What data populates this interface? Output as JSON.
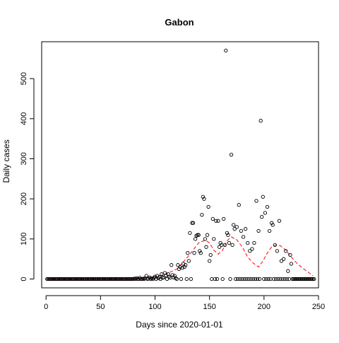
{
  "chart_data": {
    "type": "scatter",
    "title": "Gabon",
    "xlabel": "Days since 2020-01-01",
    "ylabel": "Daily cases",
    "xlim": [
      -4,
      250
    ],
    "ylim": [
      -22,
      592
    ],
    "xticks": [
      0,
      50,
      100,
      150,
      200,
      250
    ],
    "yticks": [
      0,
      100,
      200,
      300,
      400,
      500
    ],
    "grid": false,
    "point_color": "#000000",
    "trend_color": "#ff0000",
    "series": [
      {
        "values": [
          [
            1,
            0
          ],
          [
            2,
            0
          ],
          [
            3,
            0
          ],
          [
            4,
            0
          ],
          [
            5,
            0
          ],
          [
            6,
            0
          ],
          [
            7,
            0
          ],
          [
            8,
            0
          ],
          [
            9,
            0
          ],
          [
            10,
            0
          ],
          [
            11,
            0
          ],
          [
            12,
            0
          ],
          [
            13,
            0
          ],
          [
            14,
            0
          ],
          [
            15,
            0
          ],
          [
            16,
            0
          ],
          [
            17,
            0
          ],
          [
            18,
            0
          ],
          [
            19,
            0
          ],
          [
            20,
            0
          ],
          [
            21,
            0
          ],
          [
            22,
            0
          ],
          [
            23,
            0
          ],
          [
            24,
            0
          ],
          [
            25,
            0
          ],
          [
            26,
            0
          ],
          [
            27,
            0
          ],
          [
            28,
            0
          ],
          [
            29,
            0
          ],
          [
            30,
            0
          ],
          [
            31,
            0
          ],
          [
            32,
            0
          ],
          [
            33,
            0
          ],
          [
            34,
            0
          ],
          [
            35,
            0
          ],
          [
            36,
            0
          ],
          [
            37,
            0
          ],
          [
            38,
            0
          ],
          [
            39,
            0
          ],
          [
            40,
            0
          ],
          [
            41,
            0
          ],
          [
            42,
            0
          ],
          [
            43,
            0
          ],
          [
            44,
            0
          ],
          [
            45,
            0
          ],
          [
            46,
            0
          ],
          [
            47,
            0
          ],
          [
            48,
            0
          ],
          [
            49,
            0
          ],
          [
            50,
            0
          ],
          [
            51,
            0
          ],
          [
            52,
            0
          ],
          [
            53,
            0
          ],
          [
            54,
            0
          ],
          [
            55,
            0
          ],
          [
            56,
            0
          ],
          [
            57,
            0
          ],
          [
            58,
            0
          ],
          [
            59,
            0
          ],
          [
            60,
            0
          ],
          [
            61,
            0
          ],
          [
            62,
            0
          ],
          [
            63,
            0
          ],
          [
            64,
            0
          ],
          [
            65,
            0
          ],
          [
            66,
            0
          ],
          [
            67,
            0
          ],
          [
            68,
            0
          ],
          [
            69,
            0
          ],
          [
            70,
            0
          ],
          [
            71,
            0
          ],
          [
            72,
            0
          ],
          [
            73,
            0
          ],
          [
            74,
            0
          ],
          [
            75,
            0
          ],
          [
            76,
            0
          ],
          [
            77,
            0
          ],
          [
            78,
            0
          ],
          [
            79,
            0
          ],
          [
            80,
            0
          ],
          [
            81,
            1
          ],
          [
            82,
            0
          ],
          [
            83,
            2
          ],
          [
            84,
            0
          ],
          [
            85,
            0
          ],
          [
            86,
            3
          ],
          [
            87,
            0
          ],
          [
            88,
            0
          ],
          [
            89,
            1
          ],
          [
            90,
            0
          ],
          [
            91,
            2
          ],
          [
            92,
            8
          ],
          [
            93,
            0
          ],
          [
            94,
            1
          ],
          [
            95,
            4
          ],
          [
            96,
            0
          ],
          [
            97,
            2
          ],
          [
            98,
            0
          ],
          [
            99,
            3
          ],
          [
            100,
            6
          ],
          [
            101,
            0
          ],
          [
            102,
            8
          ],
          [
            103,
            2
          ],
          [
            104,
            5
          ],
          [
            105,
            0
          ],
          [
            106,
            12
          ],
          [
            107,
            3
          ],
          [
            108,
            4
          ],
          [
            109,
            15
          ],
          [
            110,
            9
          ],
          [
            111,
            0
          ],
          [
            112,
            12
          ],
          [
            113,
            6
          ],
          [
            114,
            3
          ],
          [
            115,
            35
          ],
          [
            116,
            10
          ],
          [
            117,
            4
          ],
          [
            118,
            8
          ],
          [
            119,
            2
          ],
          [
            120,
            0
          ],
          [
            121,
            35
          ],
          [
            122,
            25
          ],
          [
            123,
            30
          ],
          [
            124,
            0
          ],
          [
            125,
            28
          ],
          [
            126,
            38
          ],
          [
            127,
            30
          ],
          [
            128,
            35
          ],
          [
            129,
            0
          ],
          [
            130,
            65
          ],
          [
            131,
            45
          ],
          [
            132,
            115
          ],
          [
            133,
            0
          ],
          [
            134,
            140
          ],
          [
            135,
            140
          ],
          [
            136,
            65
          ],
          [
            137,
            100
          ],
          [
            138,
            108
          ],
          [
            139,
            110
          ],
          [
            140,
            110
          ],
          [
            141,
            70
          ],
          [
            142,
            65
          ],
          [
            143,
            160
          ],
          [
            144,
            205
          ],
          [
            145,
            200
          ],
          [
            146,
            100
          ],
          [
            147,
            80
          ],
          [
            148,
            110
          ],
          [
            149,
            180
          ],
          [
            150,
            45
          ],
          [
            151,
            60
          ],
          [
            152,
            0
          ],
          [
            153,
            150
          ],
          [
            154,
            100
          ],
          [
            155,
            0
          ],
          [
            156,
            145
          ],
          [
            157,
            0
          ],
          [
            158,
            145
          ],
          [
            159,
            80
          ],
          [
            160,
            90
          ],
          [
            161,
            85
          ],
          [
            162,
            0
          ],
          [
            163,
            150
          ],
          [
            164,
            85
          ],
          [
            165,
            570
          ],
          [
            166,
            115
          ],
          [
            167,
            110
          ],
          [
            168,
            90
          ],
          [
            169,
            0
          ],
          [
            170,
            310
          ],
          [
            171,
            85
          ],
          [
            172,
            135
          ],
          [
            173,
            125
          ],
          [
            174,
            0
          ],
          [
            175,
            130
          ],
          [
            176,
            0
          ],
          [
            177,
            185
          ],
          [
            178,
            0
          ],
          [
            179,
            120
          ],
          [
            180,
            0
          ],
          [
            181,
            105
          ],
          [
            182,
            0
          ],
          [
            183,
            125
          ],
          [
            184,
            0
          ],
          [
            185,
            90
          ],
          [
            186,
            0
          ],
          [
            187,
            70
          ],
          [
            188,
            0
          ],
          [
            189,
            75
          ],
          [
            190,
            0
          ],
          [
            191,
            90
          ],
          [
            192,
            0
          ],
          [
            193,
            195
          ],
          [
            194,
            0
          ],
          [
            195,
            120
          ],
          [
            196,
            0
          ],
          [
            197,
            395
          ],
          [
            198,
            155
          ],
          [
            199,
            205
          ],
          [
            200,
            0
          ],
          [
            201,
            165
          ],
          [
            202,
            0
          ],
          [
            203,
            180
          ],
          [
            204,
            0
          ],
          [
            205,
            120
          ],
          [
            206,
            0
          ],
          [
            207,
            140
          ],
          [
            208,
            135
          ],
          [
            209,
            0
          ],
          [
            210,
            85
          ],
          [
            211,
            0
          ],
          [
            212,
            70
          ],
          [
            213,
            0
          ],
          [
            214,
            145
          ],
          [
            215,
            0
          ],
          [
            216,
            45
          ],
          [
            217,
            0
          ],
          [
            218,
            50
          ],
          [
            219,
            0
          ],
          [
            220,
            70
          ],
          [
            221,
            0
          ],
          [
            222,
            20
          ],
          [
            223,
            0
          ],
          [
            224,
            60
          ],
          [
            225,
            38
          ],
          [
            226,
            0
          ],
          [
            227,
            0
          ],
          [
            228,
            0
          ],
          [
            229,
            0
          ],
          [
            230,
            0
          ],
          [
            231,
            0
          ],
          [
            232,
            0
          ],
          [
            233,
            0
          ],
          [
            234,
            0
          ],
          [
            235,
            0
          ],
          [
            236,
            0
          ],
          [
            237,
            0
          ],
          [
            238,
            0
          ],
          [
            239,
            0
          ],
          [
            240,
            0
          ],
          [
            241,
            0
          ],
          [
            242,
            0
          ],
          [
            243,
            0
          ],
          [
            244,
            0
          ],
          [
            245,
            0
          ],
          [
            246,
            0
          ]
        ]
      }
    ],
    "trend": [
      [
        0,
        0
      ],
      [
        60,
        0
      ],
      [
        80,
        1
      ],
      [
        90,
        3
      ],
      [
        100,
        6
      ],
      [
        110,
        12
      ],
      [
        120,
        25
      ],
      [
        130,
        55
      ],
      [
        140,
        90
      ],
      [
        146,
        97
      ],
      [
        150,
        90
      ],
      [
        154,
        72
      ],
      [
        158,
        62
      ],
      [
        162,
        72
      ],
      [
        166,
        95
      ],
      [
        170,
        105
      ],
      [
        175,
        98
      ],
      [
        180,
        80
      ],
      [
        185,
        55
      ],
      [
        190,
        40
      ],
      [
        195,
        30
      ],
      [
        199,
        45
      ],
      [
        203,
        65
      ],
      [
        207,
        80
      ],
      [
        211,
        85
      ],
      [
        215,
        83
      ],
      [
        220,
        72
      ],
      [
        225,
        55
      ],
      [
        230,
        40
      ],
      [
        235,
        28
      ],
      [
        240,
        18
      ],
      [
        245,
        8
      ]
    ]
  }
}
